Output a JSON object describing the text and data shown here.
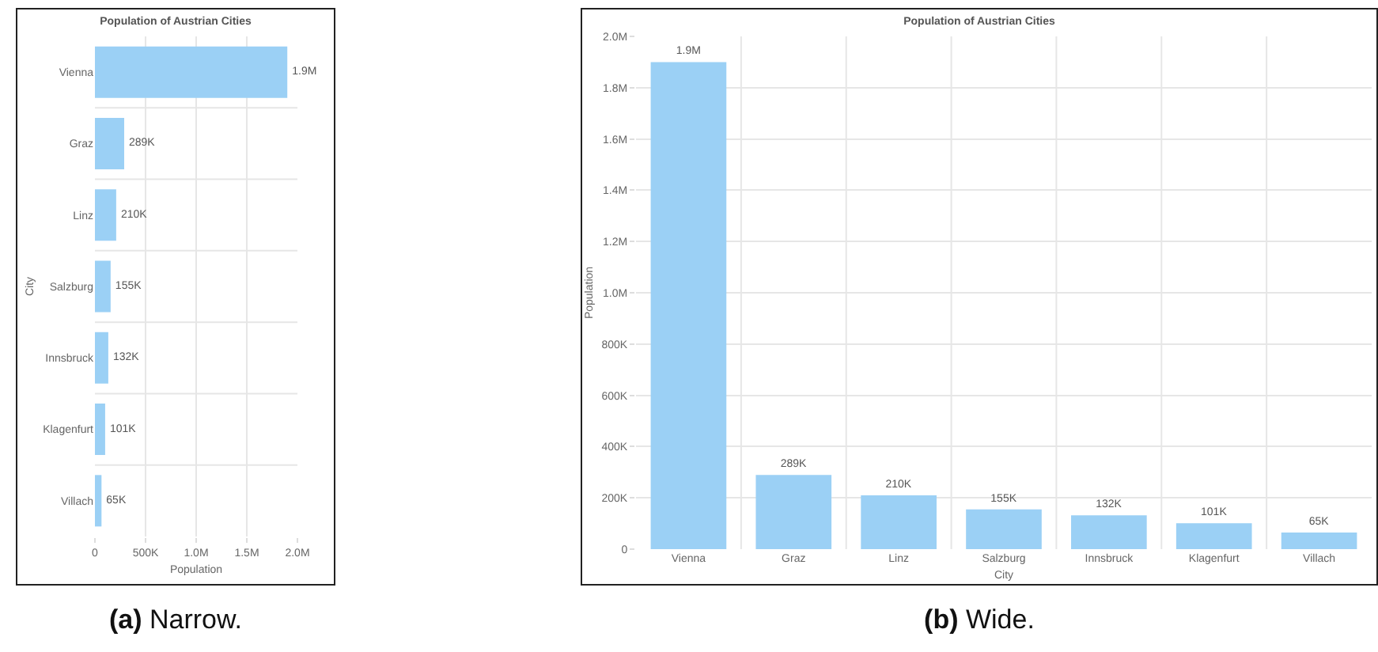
{
  "chart_data": [
    {
      "type": "bar",
      "orientation": "horizontal",
      "title": "Population of Austrian Cities",
      "xlabel": "Population",
      "ylabel": "City",
      "categories": [
        "Vienna",
        "Graz",
        "Linz",
        "Salzburg",
        "Innsbruck",
        "Klagenfurt",
        "Villach"
      ],
      "values": [
        1900000,
        289000,
        210000,
        155000,
        132000,
        101000,
        65000
      ],
      "value_labels": [
        "1.9M",
        "289K",
        "210K",
        "155K",
        "132K",
        "101K",
        "65K"
      ],
      "color": "#9bd0f5",
      "xlim": [
        0,
        2000000
      ],
      "xticks": [
        0,
        {
          "value": 500000,
          "label": "500K"
        },
        {
          "value": 1000000,
          "label": "1.0M"
        },
        {
          "value": 1500000,
          "label": "1.5M"
        },
        {
          "value": 2000000,
          "label": "2.0M"
        }
      ],
      "grid": true,
      "annotations": [
        "(a) Narrow."
      ]
    },
    {
      "type": "bar",
      "title": "Population of Austrian Cities",
      "xlabel": "City",
      "ylabel": "Population",
      "categories": [
        "Vienna",
        "Graz",
        "Linz",
        "Salzburg",
        "Innsbruck",
        "Klagenfurt",
        "Villach"
      ],
      "values": [
        1900000,
        289000,
        210000,
        155000,
        132000,
        101000,
        65000
      ],
      "value_labels": [
        "1.9M",
        "289K",
        "210K",
        "155K",
        "132K",
        "101K",
        "65K"
      ],
      "color": "#9bd0f5",
      "ylim": [
        0,
        2000000
      ],
      "yticks": [
        0,
        {
          "value": 200000,
          "label": "200K"
        },
        {
          "value": 400000,
          "label": "400K"
        },
        {
          "value": 600000,
          "label": "600K"
        },
        {
          "value": 800000,
          "label": "800K"
        },
        {
          "value": 1000000,
          "label": "1.0M"
        },
        {
          "value": 1200000,
          "label": "1.2M"
        },
        {
          "value": 1400000,
          "label": "1.4M"
        },
        {
          "value": 1600000,
          "label": "1.6M"
        },
        {
          "value": 1800000,
          "label": "1.8M"
        },
        {
          "value": 2000000,
          "label": "2.0M"
        }
      ],
      "grid": true,
      "annotations": [
        "(b) Wide."
      ]
    }
  ]
}
